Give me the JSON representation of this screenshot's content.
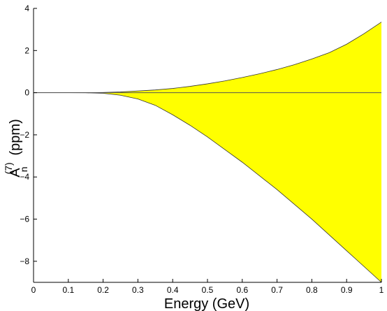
{
  "chart_data": {
    "type": "area",
    "xlabel": "Energy (GeV)",
    "ylabel": {
      "base": "A",
      "superscript": "(7)",
      "subscript": "n",
      "unit": "(ppm)"
    },
    "xlim": [
      0,
      1
    ],
    "ylim": [
      -9,
      4
    ],
    "xticks": [
      "0",
      "0.1",
      "0.2",
      "0.3",
      "0.4",
      "0.5",
      "0.6",
      "0.7",
      "0.8",
      "0.9",
      "1"
    ],
    "yticks": [
      "4",
      "2",
      "0",
      "−2",
      "−4",
      "−6",
      "−8"
    ],
    "grid": false,
    "fill_color": "#ffff00",
    "edge_color": "#333333",
    "x": [
      0,
      0.1,
      0.15,
      0.2,
      0.25,
      0.3,
      0.35,
      0.4,
      0.45,
      0.5,
      0.55,
      0.6,
      0.65,
      0.7,
      0.75,
      0.8,
      0.85,
      0.9,
      0.95,
      1.0
    ],
    "series": [
      {
        "values": [
          0,
          0,
          0.003,
          0.012,
          0.035,
          0.08,
          0.13,
          0.2,
          0.3,
          0.42,
          0.56,
          0.72,
          0.9,
          1.1,
          1.33,
          1.6,
          1.9,
          2.3,
          2.8,
          3.35
        ]
      },
      {
        "values": [
          0,
          0,
          -0.005,
          -0.03,
          -0.12,
          -0.3,
          -0.6,
          -1.05,
          -1.55,
          -2.1,
          -2.7,
          -3.3,
          -3.95,
          -4.6,
          -5.3,
          -6.0,
          -6.75,
          -7.5,
          -8.25,
          -9.0
        ]
      }
    ],
    "zero_line": 0
  }
}
